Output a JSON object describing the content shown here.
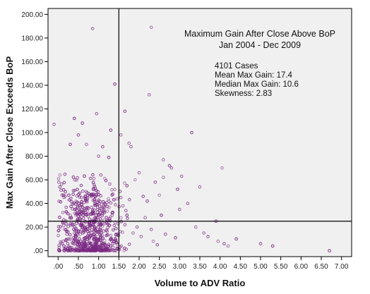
{
  "chart_data": {
    "type": "scatter",
    "title": "Maximum Gain After Close Above BoP",
    "subtitle": "Jan 2004 - Dec 2009",
    "xlabel": "Volume to ADV Ratio",
    "ylabel": "Max Gain After Close Exceeds BoP",
    "xlim": [
      -0.25,
      7.25
    ],
    "ylim": [
      -5,
      205
    ],
    "x_ticks": [
      0,
      0.5,
      1,
      1.5,
      2,
      2.5,
      3,
      3.5,
      4,
      4.5,
      5,
      5.5,
      6,
      6.5,
      7
    ],
    "x_tick_labels": [
      ".00",
      ".50",
      "1.00",
      "1.50",
      "2.00",
      "2.50",
      "3.00",
      "3.50",
      "4.00",
      "4.50",
      "5.00",
      "5.50",
      "6.00",
      "6.50",
      "7.00"
    ],
    "y_ticks": [
      0,
      20,
      40,
      60,
      80,
      100,
      120,
      140,
      160,
      180,
      200
    ],
    "y_tick_labels": [
      ".00",
      "20.00",
      "40.00",
      "60.00",
      "80.00",
      "100.00",
      "120.00",
      "140.00",
      "160.00",
      "180.00",
      "200.00"
    ],
    "reference_lines": {
      "x": 1.5,
      "y": 25
    },
    "grid": false,
    "annotations": {
      "cases": "4101 Cases",
      "mean": "Mean Max Gain: 17.4",
      "median": "Median Max Gain: 10.6",
      "skewness": "Skewness: 2.83"
    },
    "marker_color": "#7b2a83",
    "plot_background": "#f0f0f0",
    "outliers": [
      [
        0.85,
        188
      ],
      [
        2.3,
        189
      ],
      [
        1.4,
        141
      ],
      [
        2.25,
        132
      ],
      [
        0.95,
        116
      ],
      [
        -0.1,
        107
      ],
      [
        1.65,
        118
      ],
      [
        0.4,
        112
      ],
      [
        0.6,
        108
      ],
      [
        1.3,
        102
      ],
      [
        3.3,
        100
      ],
      [
        1.55,
        98
      ],
      [
        0.5,
        98
      ],
      [
        0.7,
        90
      ],
      [
        1.75,
        91
      ],
      [
        1.8,
        88
      ],
      [
        1.1,
        88
      ],
      [
        1.25,
        79
      ],
      [
        0.3,
        90
      ],
      [
        1.0,
        80
      ],
      [
        2.6,
        77
      ],
      [
        2.75,
        72
      ],
      [
        2.8,
        70
      ],
      [
        4.05,
        70
      ],
      [
        3.05,
        63
      ],
      [
        2.6,
        62
      ],
      [
        2.0,
        66
      ],
      [
        1.9,
        60
      ],
      [
        2.4,
        58
      ],
      [
        2.95,
        52
      ],
      [
        3.5,
        54
      ],
      [
        2.5,
        47
      ],
      [
        3.2,
        40
      ],
      [
        3.0,
        35
      ],
      [
        2.2,
        42
      ],
      [
        1.7,
        55
      ],
      [
        2.1,
        46
      ],
      [
        4.1,
        6
      ],
      [
        4.2,
        4
      ],
      [
        5.0,
        6
      ],
      [
        5.3,
        4
      ],
      [
        6.7,
        0
      ],
      [
        3.7,
        12
      ],
      [
        3.95,
        8
      ],
      [
        4.4,
        10
      ],
      [
        3.6,
        15
      ],
      [
        3.4,
        20
      ],
      [
        3.9,
        25
      ],
      [
        2.9,
        11
      ],
      [
        2.65,
        14
      ],
      [
        2.45,
        5
      ],
      [
        2.35,
        8
      ],
      [
        2.3,
        18
      ],
      [
        2.05,
        12
      ],
      [
        1.95,
        20
      ],
      [
        1.85,
        15
      ],
      [
        1.65,
        22
      ],
      [
        1.7,
        30
      ],
      [
        2.15,
        28
      ],
      [
        2.55,
        30
      ],
      [
        1.6,
        38
      ],
      [
        1.55,
        45
      ]
    ],
    "cluster": {
      "n": 720,
      "x_mode": 0.75,
      "x_spread": 0.38,
      "y_median": 10.6,
      "y_max": 95,
      "seed": 7
    }
  }
}
